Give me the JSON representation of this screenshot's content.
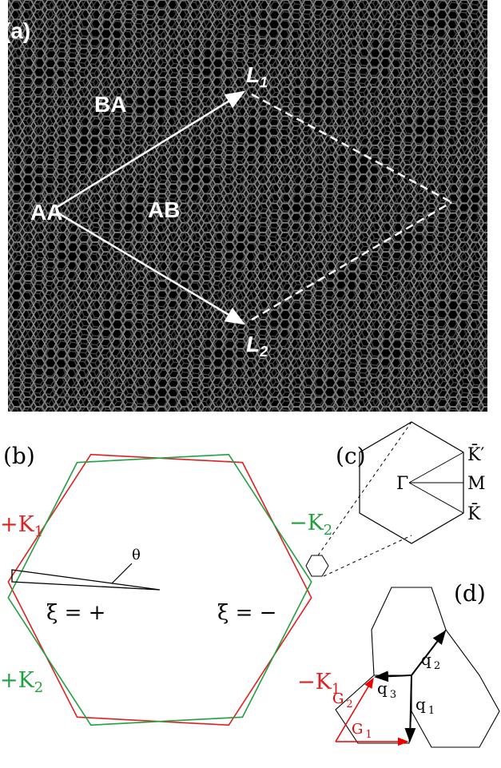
{
  "panel_a": {
    "label": "(a)",
    "regions": [
      "BA",
      "AA",
      "AB"
    ],
    "vectors": [
      {
        "symbol": "L",
        "sub": "1"
      },
      {
        "symbol": "L",
        "sub": "2"
      }
    ]
  },
  "panel_b": {
    "label": "(b)",
    "plus_k1": {
      "symbol": "+K",
      "sub": "1"
    },
    "plus_k2": {
      "symbol": "+K",
      "sub": "2"
    },
    "minus_k2": {
      "symbol": "−K",
      "sub": "2"
    },
    "minus_k1": {
      "symbol": "−K",
      "sub": "1"
    },
    "angle": "θ",
    "valley_plus": "ξ = +",
    "valley_minus": "ξ = −"
  },
  "panel_c": {
    "label": "(c)",
    "gamma": "Γ",
    "k_prime": "K̄′",
    "m": "M",
    "k": "K̄"
  },
  "panel_d": {
    "label": "(d)",
    "q1": {
      "symbol": "q",
      "sub": "1"
    },
    "q2": {
      "symbol": "q",
      "sub": "2"
    },
    "q3": {
      "symbol": "q",
      "sub": "3"
    },
    "g1": {
      "symbol": "G",
      "sub": "1"
    },
    "g2": {
      "symbol": "G",
      "sub": "2"
    }
  }
}
